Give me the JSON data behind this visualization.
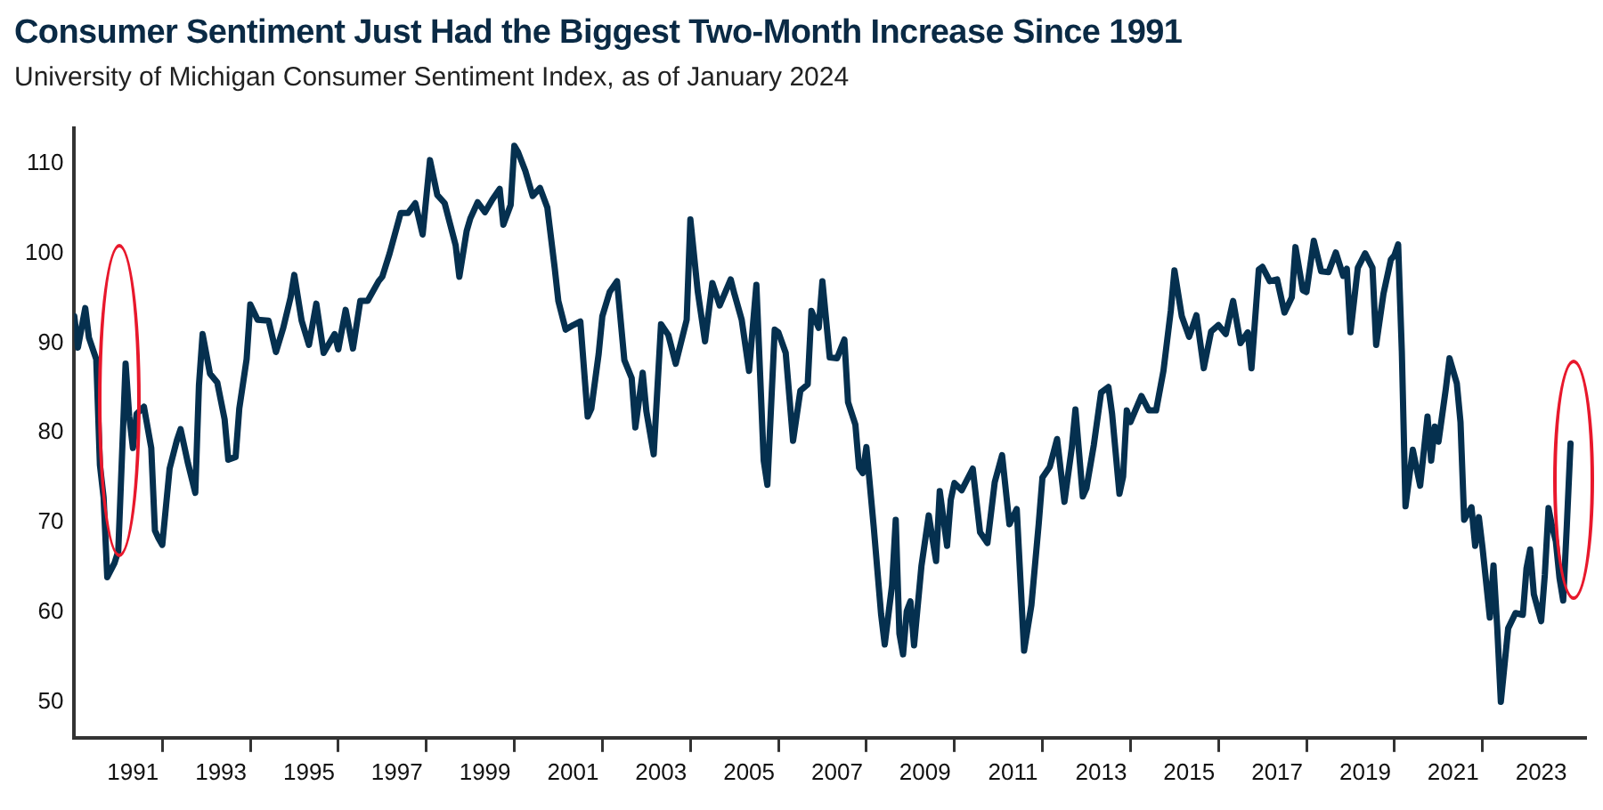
{
  "chart_data": {
    "type": "line",
    "title": "Consumer Sentiment Just Had the Biggest Two-Month Increase Since 1991",
    "subtitle": "University of Michigan Consumer Sentiment Index, as of January 2024",
    "x": [
      "1990-01",
      "1990-02",
      "1990-04",
      "1990-05",
      "1990-07",
      "1990-08",
      "1990-09",
      "1990-10",
      "1990-12",
      "1991-01",
      "1991-03",
      "1991-04",
      "1991-05",
      "1991-06",
      "1991-08",
      "1991-10",
      "1991-11",
      "1991-12",
      "1992-01",
      "1992-03",
      "1992-05",
      "1992-06",
      "1992-08",
      "1992-10",
      "1992-11",
      "1992-12",
      "1993-02",
      "1993-04",
      "1993-06",
      "1993-07",
      "1993-09",
      "1993-10",
      "1993-12",
      "1994-01",
      "1994-03",
      "1994-06",
      "1994-08",
      "1994-10",
      "1994-12",
      "1995-01",
      "1995-03",
      "1995-05",
      "1995-07",
      "1995-09",
      "1995-12",
      "1996-01",
      "1996-03",
      "1996-05",
      "1996-07",
      "1996-09",
      "1996-12",
      "1997-01",
      "1997-03",
      "1997-06",
      "1997-08",
      "1997-10",
      "1997-12",
      "1998-02",
      "1998-04",
      "1998-06",
      "1998-09",
      "1998-10",
      "1998-12",
      "1999-01",
      "1999-03",
      "1999-05",
      "1999-07",
      "1999-09",
      "1999-10",
      "1999-12",
      "2000-01",
      "2000-02",
      "2000-04",
      "2000-06",
      "2000-08",
      "2000-10",
      "2000-12",
      "2001-01",
      "2001-03",
      "2001-05",
      "2001-07",
      "2001-09",
      "2001-10",
      "2001-12",
      "2002-01",
      "2002-03",
      "2002-05",
      "2002-07",
      "2002-09",
      "2002-10",
      "2002-12",
      "2003-01",
      "2003-03",
      "2003-05",
      "2003-07",
      "2003-09",
      "2003-12",
      "2004-01",
      "2004-03",
      "2004-05",
      "2004-07",
      "2004-09",
      "2004-12",
      "2005-01",
      "2005-03",
      "2005-05",
      "2005-07",
      "2005-09",
      "2005-10",
      "2005-12",
      "2006-01",
      "2006-03",
      "2006-05",
      "2006-07",
      "2006-09",
      "2006-10",
      "2006-12",
      "2007-01",
      "2007-03",
      "2007-05",
      "2007-07",
      "2007-08",
      "2007-10",
      "2007-11",
      "2007-12",
      "2008-01",
      "2008-03",
      "2008-05",
      "2008-06",
      "2008-08",
      "2008-09",
      "2008-10",
      "2008-11",
      "2008-12",
      "2009-01",
      "2009-02",
      "2009-04",
      "2009-06",
      "2009-08",
      "2009-09",
      "2009-11",
      "2009-12",
      "2010-01",
      "2010-03",
      "2010-06",
      "2010-08",
      "2010-10",
      "2010-12",
      "2011-02",
      "2011-04",
      "2011-06",
      "2011-08",
      "2011-10",
      "2011-12",
      "2012-01",
      "2012-03",
      "2012-05",
      "2012-07",
      "2012-09",
      "2012-10",
      "2012-12",
      "2013-01",
      "2013-03",
      "2013-05",
      "2013-07",
      "2013-08",
      "2013-10",
      "2013-11",
      "2013-12",
      "2014-01",
      "2014-04",
      "2014-06",
      "2014-08",
      "2014-10",
      "2014-12",
      "2015-01",
      "2015-03",
      "2015-05",
      "2015-07",
      "2015-09",
      "2015-11",
      "2016-01",
      "2016-03",
      "2016-05",
      "2016-07",
      "2016-09",
      "2016-10",
      "2016-12",
      "2017-01",
      "2017-03",
      "2017-05",
      "2017-07",
      "2017-09",
      "2017-10",
      "2017-12",
      "2018-01",
      "2018-03",
      "2018-05",
      "2018-07",
      "2018-09",
      "2018-11",
      "2018-12",
      "2019-01",
      "2019-03",
      "2019-05",
      "2019-07",
      "2019-08",
      "2019-10",
      "2019-12",
      "2020-01",
      "2020-02",
      "2020-03",
      "2020-04",
      "2020-06",
      "2020-08",
      "2020-10",
      "2020-11",
      "2020-12",
      "2021-01",
      "2021-03",
      "2021-04",
      "2021-06",
      "2021-07",
      "2021-08",
      "2021-10",
      "2021-11",
      "2021-12",
      "2022-01",
      "2022-03",
      "2022-04",
      "2022-05",
      "2022-06",
      "2022-08",
      "2022-10",
      "2022-12",
      "2023-01",
      "2023-02",
      "2023-03",
      "2023-05",
      "2023-06",
      "2023-07",
      "2023-08",
      "2023-09",
      "2023-10",
      "2023-11",
      "2023-12",
      "2024-01"
    ],
    "values": [
      93.0,
      89.5,
      93.9,
      90.6,
      88.2,
      76.4,
      72.8,
      63.9,
      65.5,
      66.8,
      87.7,
      81.8,
      78.3,
      82.1,
      82.9,
      78.3,
      69.1,
      68.2,
      67.5,
      76.0,
      79.2,
      80.4,
      76.6,
      73.3,
      85.3,
      91.0,
      86.6,
      85.6,
      81.5,
      77.0,
      77.3,
      82.7,
      88.2,
      94.3,
      92.6,
      92.5,
      89.0,
      91.7,
      95.1,
      97.6,
      92.5,
      89.8,
      94.4,
      88.9,
      91.0,
      89.3,
      93.7,
      89.4,
      94.7,
      94.7,
      96.9,
      97.4,
      100.0,
      104.5,
      104.5,
      105.6,
      102.1,
      110.4,
      106.5,
      105.6,
      100.9,
      97.4,
      102.5,
      103.9,
      105.7,
      104.6,
      106.0,
      107.2,
      103.2,
      105.4,
      112.0,
      111.3,
      109.2,
      106.4,
      107.3,
      105.1,
      98.4,
      94.7,
      91.5,
      92.0,
      92.4,
      81.8,
      82.7,
      88.8,
      93.0,
      95.7,
      96.9,
      88.1,
      86.1,
      80.6,
      86.7,
      82.4,
      77.6,
      92.1,
      90.9,
      87.7,
      92.6,
      103.8,
      95.8,
      90.2,
      96.7,
      94.2,
      97.1,
      95.5,
      92.6,
      86.9,
      96.5,
      76.9,
      74.2,
      91.5,
      91.2,
      88.9,
      79.1,
      84.7,
      85.4,
      93.6,
      91.7,
      96.9,
      88.4,
      88.3,
      90.4,
      83.4,
      80.9,
      76.1,
      75.5,
      78.4,
      69.5,
      59.8,
      56.4,
      63.0,
      70.3,
      57.6,
      55.3,
      60.1,
      61.2,
      56.3,
      65.1,
      70.8,
      65.7,
      73.5,
      67.4,
      72.5,
      74.4,
      73.6,
      76.0,
      68.9,
      67.7,
      74.5,
      77.5,
      69.8,
      71.5,
      55.7,
      60.8,
      69.9,
      75.0,
      76.2,
      79.3,
      72.3,
      78.3,
      82.6,
      72.9,
      73.8,
      78.6,
      84.5,
      85.1,
      82.1,
      73.2,
      75.1,
      82.5,
      81.2,
      84.1,
      82.5,
      82.5,
      86.9,
      93.6,
      98.1,
      93.0,
      90.7,
      93.1,
      87.2,
      91.3,
      92.0,
      91.0,
      94.7,
      90.0,
      91.2,
      87.2,
      98.2,
      98.5,
      96.9,
      97.1,
      93.4,
      95.1,
      100.7,
      95.9,
      95.7,
      101.4,
      98.0,
      97.9,
      100.1,
      97.5,
      98.3,
      91.2,
      98.4,
      100.0,
      98.4,
      89.8,
      95.5,
      99.3,
      99.8,
      101.0,
      89.1,
      71.8,
      78.1,
      74.1,
      81.8,
      76.9,
      80.7,
      79.0,
      84.9,
      88.3,
      85.5,
      81.2,
      70.3,
      71.7,
      67.4,
      70.6,
      67.2,
      59.4,
      65.2,
      58.4,
      50.0,
      58.2,
      59.9,
      59.7,
      64.9,
      67.0,
      62.0,
      59.0,
      64.2,
      71.6,
      69.5,
      67.9,
      63.8,
      61.3,
      69.7,
      78.8
    ],
    "color": "#05304f",
    "line_style": "solid",
    "marker": "none",
    "xlim": [
      "1990-01",
      "2024-05"
    ],
    "xticks": [
      {
        "value": "1991-05",
        "label": "1991"
      },
      {
        "value": "1992-01",
        "label": null
      },
      {
        "value": "1993-05",
        "label": "1993"
      },
      {
        "value": "1994-01",
        "label": null
      },
      {
        "value": "1995-05",
        "label": "1995"
      },
      {
        "value": "1996-01",
        "label": null
      },
      {
        "value": "1997-05",
        "label": "1997"
      },
      {
        "value": "1998-01",
        "label": null
      },
      {
        "value": "1999-05",
        "label": "1999"
      },
      {
        "value": "2000-01",
        "label": null
      },
      {
        "value": "2001-05",
        "label": "2001"
      },
      {
        "value": "2002-01",
        "label": null
      },
      {
        "value": "2003-05",
        "label": "2003"
      },
      {
        "value": "2004-01",
        "label": null
      },
      {
        "value": "2005-05",
        "label": "2005"
      },
      {
        "value": "2006-01",
        "label": null
      },
      {
        "value": "2007-05",
        "label": "2007"
      },
      {
        "value": "2008-01",
        "label": null
      },
      {
        "value": "2009-05",
        "label": "2009"
      },
      {
        "value": "2010-01",
        "label": null
      },
      {
        "value": "2011-05",
        "label": "2011"
      },
      {
        "value": "2012-01",
        "label": null
      },
      {
        "value": "2013-05",
        "label": "2013"
      },
      {
        "value": "2014-01",
        "label": null
      },
      {
        "value": "2015-05",
        "label": "2015"
      },
      {
        "value": "2016-01",
        "label": null
      },
      {
        "value": "2017-05",
        "label": "2017"
      },
      {
        "value": "2018-01",
        "label": null
      },
      {
        "value": "2019-05",
        "label": "2019"
      },
      {
        "value": "2020-01",
        "label": null
      },
      {
        "value": "2021-05",
        "label": "2021"
      },
      {
        "value": "2022-01",
        "label": null
      },
      {
        "value": "2023-05",
        "label": "2023"
      }
    ],
    "ylim": [
      46,
      114
    ],
    "yticks": [
      50,
      60,
      70,
      80,
      90,
      100,
      110
    ],
    "legend": false
  }
}
